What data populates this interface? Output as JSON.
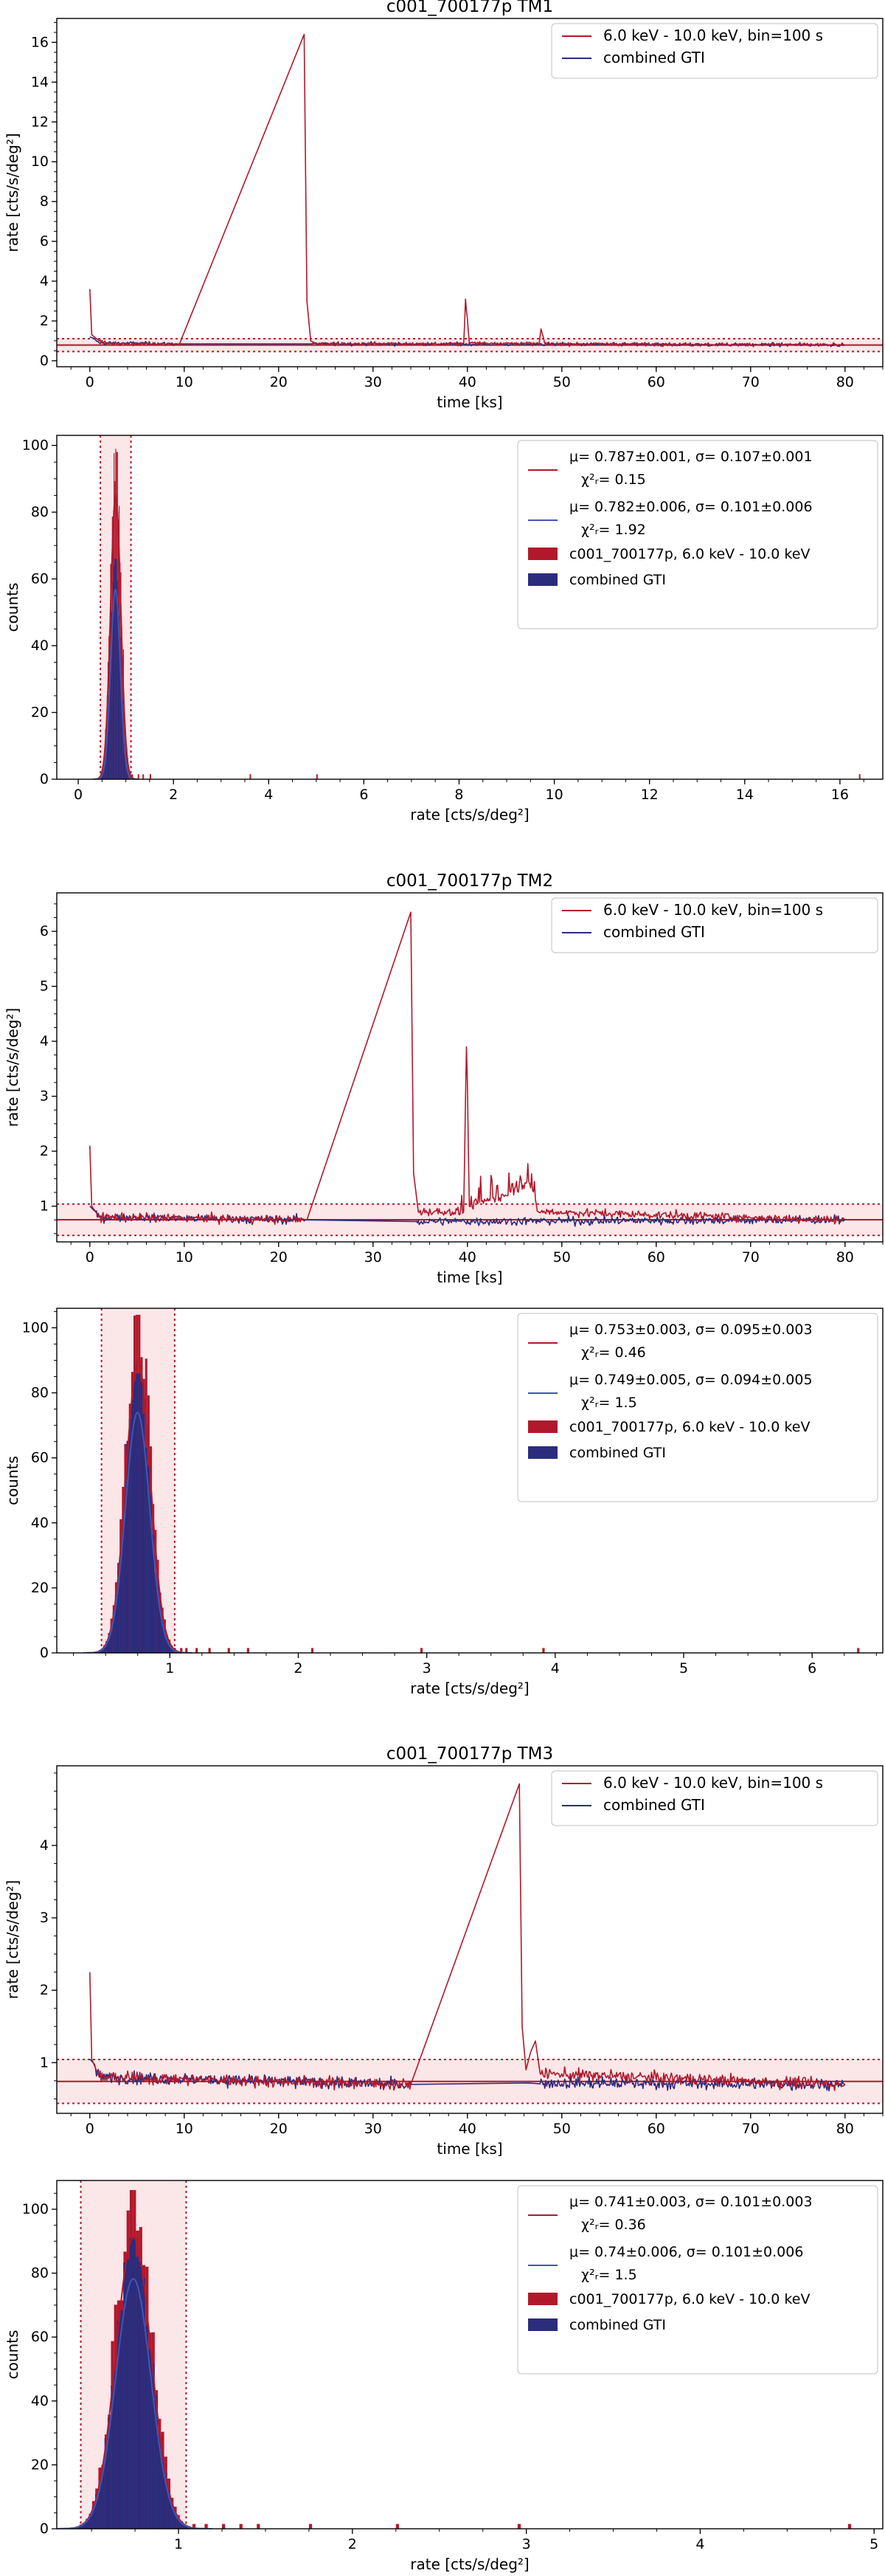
{
  "colors": {
    "red": "#b2182b",
    "blue": "#2b2c7c",
    "band": "#f6c7cc"
  },
  "chart_data": [
    {
      "type": "line",
      "title": "c001_700177p TM1",
      "xlabel": "time [ks]",
      "ylabel": "rate [cts/s/deg²]",
      "xlim": [
        -3.5,
        84
      ],
      "ylim": [
        -0.3,
        17.2
      ],
      "xticks": [
        0,
        10,
        20,
        30,
        40,
        50,
        60,
        70,
        80
      ],
      "yticks": [
        0,
        2,
        4,
        6,
        8,
        10,
        12,
        14,
        16
      ],
      "band": {
        "mean": 0.787,
        "sigma": 0.107
      },
      "legend": [
        "6.0 keV - 10.0 keV, bin=100 s",
        "combined GTI"
      ],
      "series": [
        {
          "name": "6.0 keV - 10.0 keV, bin=100 s",
          "color": "red",
          "keypoints": [
            [
              0,
              3.6
            ],
            [
              0.2,
              1.3
            ],
            [
              1,
              1.0
            ],
            [
              2,
              0.85
            ],
            [
              9.5,
              0.85
            ],
            [
              22.7,
              16.4
            ],
            [
              23.0,
              3.0
            ],
            [
              23.4,
              1.0
            ],
            [
              24,
              0.85
            ],
            [
              39.6,
              0.85
            ],
            [
              39.8,
              3.1
            ],
            [
              40.2,
              0.9
            ],
            [
              47.6,
              0.85
            ],
            [
              47.8,
              1.6
            ],
            [
              48.2,
              0.85
            ],
            [
              80,
              0.8
            ]
          ],
          "noise_ranges": [
            [
              1,
              9.5
            ],
            [
              24,
              79.8
            ]
          ]
        },
        {
          "name": "combined GTI",
          "color": "blue",
          "keypoints": [
            [
              0,
              1.2
            ],
            [
              1,
              0.9
            ],
            [
              9.4,
              0.85
            ],
            [
              23.5,
              0.85
            ],
            [
              80,
              0.8
            ]
          ],
          "noise_ranges": [
            [
              0.5,
              9.4
            ],
            [
              23.5,
              79.8
            ]
          ]
        }
      ]
    },
    {
      "type": "histogram",
      "xlabel": "rate [cts/s/deg²]",
      "ylabel": "counts",
      "xlim": [
        -0.45,
        16.9
      ],
      "ylim": [
        0,
        103
      ],
      "xticks": [
        0,
        2,
        4,
        6,
        8,
        10,
        12,
        14,
        16
      ],
      "yticks": [
        0,
        20,
        40,
        60,
        80,
        100
      ],
      "band": {
        "mean": 0.787,
        "sigma": 0.107
      },
      "legend": [
        {
          "l1": "μ= 0.787±0.001, σ= 0.107±0.001",
          "l2": "χ²ᵣ= 0.15"
        },
        {
          "l1": "μ= 0.782±0.006, σ= 0.101±0.006",
          "l2": "χ²ᵣ= 1.92"
        },
        {
          "l1": "c001_700177p, 6.0 keV - 10.0 keV"
        },
        {
          "l1": "combined GTI"
        }
      ],
      "hist_red": {
        "mean": 0.787,
        "sigma": 0.107,
        "peak": 99
      },
      "hist_blue": {
        "mean": 0.782,
        "sigma": 0.101,
        "peak": 66
      },
      "outliers": [
        1.05,
        1.12,
        1.25,
        1.35,
        1.5,
        3.6,
        5.0,
        16.4
      ]
    },
    {
      "type": "line",
      "title": "c001_700177p TM2",
      "xlabel": "time [ks]",
      "ylabel": "rate [cts/s/deg²]",
      "xlim": [
        -3.5,
        84
      ],
      "ylim": [
        0.35,
        6.7
      ],
      "xticks": [
        0,
        10,
        20,
        30,
        40,
        50,
        60,
        70,
        80
      ],
      "yticks": [
        1,
        2,
        3,
        4,
        5,
        6
      ],
      "band": {
        "mean": 0.753,
        "sigma": 0.095
      },
      "legend": [
        "6.0 keV - 10.0 keV, bin=100 s",
        "combined GTI"
      ],
      "series": [
        {
          "name": "6.0 keV - 10.0 keV, bin=100 s",
          "color": "red",
          "keypoints": [
            [
              0,
              2.1
            ],
            [
              0.2,
              1.0
            ],
            [
              1,
              0.8
            ],
            [
              23,
              0.75
            ],
            [
              34,
              6.35
            ],
            [
              34.3,
              1.6
            ],
            [
              34.8,
              0.9
            ],
            [
              39.6,
              0.9
            ],
            [
              39.9,
              3.9
            ],
            [
              40.2,
              1.0
            ],
            [
              44,
              1.2
            ],
            [
              46.5,
              1.45
            ],
            [
              47.5,
              0.9
            ],
            [
              80,
              0.75
            ]
          ],
          "noise_ranges": [
            [
              1,
              22.8
            ],
            [
              34.8,
              79.8
            ]
          ],
          "spike_ranges": [
            [
              39,
              47.5
            ]
          ]
        },
        {
          "name": "combined GTI",
          "color": "blue",
          "keypoints": [
            [
              0,
              1.0
            ],
            [
              1,
              0.8
            ],
            [
              22.8,
              0.75
            ],
            [
              34.5,
              0.72
            ],
            [
              80,
              0.75
            ]
          ],
          "noise_ranges": [
            [
              0.5,
              22.8
            ],
            [
              34.5,
              79.8
            ]
          ]
        }
      ]
    },
    {
      "type": "histogram",
      "xlabel": "rate [cts/s/deg²]",
      "ylabel": "counts",
      "xlim": [
        0.12,
        6.55
      ],
      "ylim": [
        0,
        106
      ],
      "xticks": [
        1,
        2,
        3,
        4,
        5,
        6
      ],
      "yticks": [
        0,
        20,
        40,
        60,
        80,
        100
      ],
      "band": {
        "mean": 0.753,
        "sigma": 0.095
      },
      "legend": [
        {
          "l1": "μ= 0.753±0.003, σ= 0.095±0.003",
          "l2": "χ²ᵣ= 0.46"
        },
        {
          "l1": "μ= 0.749±0.005, σ= 0.094±0.005",
          "l2": "χ²ᵣ= 1.5"
        },
        {
          "l1": "c001_700177p, 6.0 keV - 10.0 keV"
        },
        {
          "l1": "combined GTI"
        }
      ],
      "hist_red": {
        "mean": 0.753,
        "sigma": 0.095,
        "peak": 104
      },
      "hist_blue": {
        "mean": 0.749,
        "sigma": 0.094,
        "peak": 86
      },
      "outliers": [
        1.03,
        1.08,
        1.12,
        1.2,
        1.3,
        1.45,
        1.6,
        2.1,
        2.95,
        3.9,
        6.35
      ]
    },
    {
      "type": "line",
      "title": "c001_700177p TM3",
      "xlabel": "time [ks]",
      "ylabel": "rate [cts/s/deg²]",
      "xlim": [
        -3.5,
        84
      ],
      "ylim": [
        0.3,
        5.1
      ],
      "xticks": [
        0,
        10,
        20,
        30,
        40,
        50,
        60,
        70,
        80
      ],
      "yticks": [
        1,
        2,
        3,
        4
      ],
      "band": {
        "mean": 0.741,
        "sigma": 0.101
      },
      "legend": [
        "6.0 keV - 10.0 keV, bin=100 s",
        "combined GTI"
      ],
      "series": [
        {
          "name": "6.0 keV - 10.0 keV, bin=100 s",
          "color": "red",
          "keypoints": [
            [
              0,
              2.25
            ],
            [
              0.2,
              1.05
            ],
            [
              1,
              0.8
            ],
            [
              34,
              0.7
            ],
            [
              45.5,
              4.85
            ],
            [
              45.8,
              1.5
            ],
            [
              46.2,
              0.9
            ],
            [
              46.7,
              1.15
            ],
            [
              47.2,
              1.3
            ],
            [
              47.7,
              0.85
            ],
            [
              80,
              0.7
            ]
          ],
          "noise_ranges": [
            [
              1,
              34
            ],
            [
              47.7,
              79.8
            ]
          ]
        },
        {
          "name": "combined GTI",
          "color": "blue",
          "keypoints": [
            [
              0,
              1.05
            ],
            [
              1,
              0.8
            ],
            [
              34,
              0.7
            ],
            [
              46.5,
              0.72
            ],
            [
              80,
              0.7
            ]
          ],
          "noise_ranges": [
            [
              0.5,
              34
            ],
            [
              47.7,
              79.8
            ]
          ]
        }
      ]
    },
    {
      "type": "histogram",
      "xlabel": "rate [cts/s/deg²]",
      "ylabel": "counts",
      "xlim": [
        0.3,
        5.05
      ],
      "ylim": [
        0,
        109
      ],
      "xticks": [
        1,
        2,
        3,
        4,
        5
      ],
      "yticks": [
        0,
        20,
        40,
        60,
        80,
        100
      ],
      "band": {
        "mean": 0.741,
        "sigma": 0.101
      },
      "legend": [
        {
          "l1": "μ= 0.741±0.003, σ= 0.101±0.003",
          "l2": "χ²ᵣ= 0.36"
        },
        {
          "l1": "μ= 0.74±0.006, σ= 0.101±0.006",
          "l2": "χ²ᵣ= 1.5"
        },
        {
          "l1": "c001_700177p, 6.0 keV - 10.0 keV"
        },
        {
          "l1": "combined GTI"
        }
      ],
      "hist_red": {
        "mean": 0.741,
        "sigma": 0.101,
        "peak": 106
      },
      "hist_blue": {
        "mean": 0.74,
        "sigma": 0.101,
        "peak": 91
      },
      "outliers": [
        1.08,
        1.15,
        1.25,
        1.35,
        1.45,
        1.75,
        2.25,
        2.95,
        4.85
      ]
    }
  ]
}
